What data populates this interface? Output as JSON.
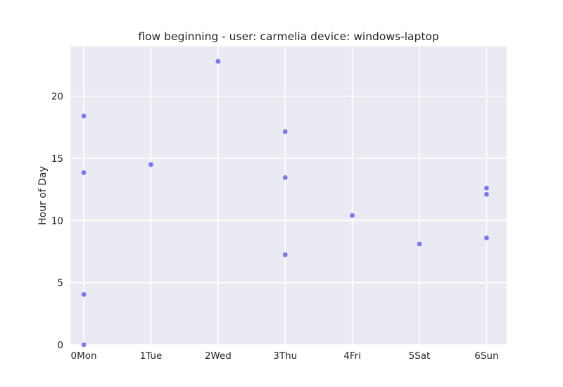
{
  "chart_data": {
    "type": "scatter",
    "title": "flow beginning - user: carmelia device: windows-laptop",
    "xlabel": "",
    "ylabel": "Hour of Day",
    "categories": [
      "Mon",
      "Tue",
      "Wed",
      "Thu",
      "Fri",
      "Sat",
      "Sun"
    ],
    "x_tick_labels": [
      "0Mon",
      "1Tue",
      "2Wed",
      "3Thu",
      "4Fri",
      "5Sat",
      "6Sun"
    ],
    "xlim": [
      -0.2,
      6.3
    ],
    "ylim": [
      0,
      24
    ],
    "yticks": [
      0,
      5,
      10,
      15,
      20
    ],
    "grid": true,
    "colors": {
      "background": "#EAEAF2",
      "grid": "#FFFFFF",
      "point": "#6B6BF0"
    },
    "series": [
      {
        "points": [
          {
            "x": 0,
            "y": 18.4
          },
          {
            "x": 0,
            "y": 13.85
          },
          {
            "x": 0,
            "y": 4.05
          },
          {
            "x": 0,
            "y": 0.0
          },
          {
            "x": 1,
            "y": 14.5
          },
          {
            "x": 2,
            "y": 22.8
          },
          {
            "x": 3,
            "y": 17.15
          },
          {
            "x": 3,
            "y": 13.45
          },
          {
            "x": 3,
            "y": 7.25
          },
          {
            "x": 4,
            "y": 10.4
          },
          {
            "x": 5,
            "y": 8.1
          },
          {
            "x": 6,
            "y": 12.6
          },
          {
            "x": 6,
            "y": 12.1
          },
          {
            "x": 6,
            "y": 8.6
          }
        ]
      }
    ]
  }
}
